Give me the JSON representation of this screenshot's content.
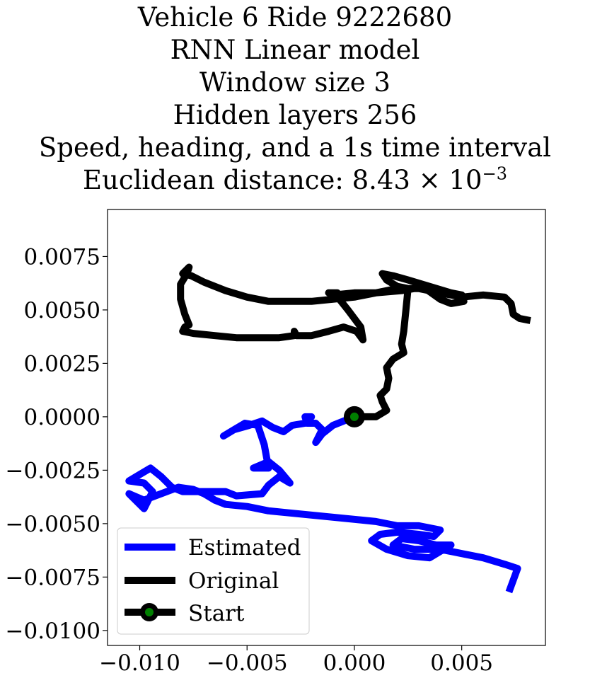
{
  "title": {
    "line1": "Vehicle 6 Ride 9222680",
    "line2": "RNN Linear model",
    "line3": "Window size 3",
    "line4": "Hidden layers 256",
    "line5": "Speed, heading, and a 1s time interval",
    "line6_prefix": "Euclidean distance: 8.43 × 10",
    "line6_exponent": "−3"
  },
  "chart_data": {
    "type": "line",
    "xlim": [
      -0.0115,
      0.0089
    ],
    "ylim": [
      -0.0107,
      0.0097
    ],
    "xticks": [
      -0.01,
      -0.005,
      0.0,
      0.005
    ],
    "xtick_labels": [
      "−0.010",
      "−0.005",
      "0.000",
      "0.005"
    ],
    "yticks": [
      0.0075,
      0.005,
      0.0025,
      0.0,
      -0.0025,
      -0.005,
      -0.0075,
      -0.01
    ],
    "ytick_labels": [
      "0.0075",
      "0.0050",
      "0.0025",
      "0.0000",
      "−0.0025",
      "−0.0050",
      "−0.0075",
      "−0.0100"
    ],
    "grid": false,
    "legend_position": "lower-left",
    "series": [
      {
        "name": "Estimated",
        "color": "#0000ff",
        "points": [
          [
            0.0,
            0.0
          ],
          [
            -0.001,
            -0.0004
          ],
          [
            -0.0015,
            -0.0008
          ],
          [
            -0.0018,
            -0.0012
          ],
          [
            -0.0015,
            -0.0006
          ],
          [
            -0.0018,
            -0.0003
          ],
          [
            -0.0022,
            -0.0003
          ],
          [
            -0.0023,
            0.0
          ],
          [
            -0.002,
            0.0
          ],
          [
            -0.0023,
            -0.0003
          ],
          [
            -0.0029,
            -0.0004
          ],
          [
            -0.0033,
            -0.0007
          ],
          [
            -0.0038,
            -0.0005
          ],
          [
            -0.0043,
            -0.0002
          ],
          [
            -0.0049,
            -0.0004
          ],
          [
            -0.0056,
            -0.0006
          ],
          [
            -0.0061,
            -0.0009
          ],
          [
            -0.0056,
            -0.0006
          ],
          [
            -0.0051,
            -0.0003
          ],
          [
            -0.0045,
            -0.0004
          ],
          [
            -0.0042,
            -0.0013
          ],
          [
            -0.004,
            -0.0024
          ],
          [
            -0.0047,
            -0.0024
          ],
          [
            -0.004,
            -0.0021
          ],
          [
            -0.0035,
            -0.0025
          ],
          [
            -0.003,
            -0.0031
          ],
          [
            -0.0035,
            -0.0028
          ],
          [
            -0.004,
            -0.0032
          ],
          [
            -0.0043,
            -0.0036
          ],
          [
            -0.0055,
            -0.0037
          ],
          [
            -0.006,
            -0.0035
          ],
          [
            -0.0068,
            -0.0035
          ],
          [
            -0.008,
            -0.0035
          ],
          [
            -0.0085,
            -0.0033
          ],
          [
            -0.009,
            -0.0028
          ],
          [
            -0.0095,
            -0.0024
          ],
          [
            -0.01,
            -0.0027
          ],
          [
            -0.0105,
            -0.003
          ],
          [
            -0.0098,
            -0.0031
          ],
          [
            -0.0094,
            -0.0035
          ],
          [
            -0.0098,
            -0.0043
          ],
          [
            -0.0105,
            -0.0036
          ],
          [
            -0.0098,
            -0.0039
          ],
          [
            -0.009,
            -0.0036
          ],
          [
            -0.0082,
            -0.0033
          ],
          [
            -0.0075,
            -0.0034
          ],
          [
            -0.007,
            -0.0036
          ],
          [
            -0.0065,
            -0.0039
          ],
          [
            -0.006,
            -0.0041
          ],
          [
            -0.005,
            -0.0042
          ],
          [
            -0.004,
            -0.0044
          ],
          [
            -0.003,
            -0.0045
          ],
          [
            -0.002,
            -0.0046
          ],
          [
            -0.001,
            -0.0047
          ],
          [
            0.0,
            -0.0048
          ],
          [
            0.001,
            -0.0049
          ],
          [
            0.002,
            -0.0051
          ],
          [
            0.003,
            -0.0051
          ],
          [
            0.004,
            -0.0053
          ],
          [
            0.0037,
            -0.0056
          ],
          [
            0.003,
            -0.0055
          ],
          [
            0.002,
            -0.0054
          ],
          [
            0.0012,
            -0.0055
          ],
          [
            0.0008,
            -0.0058
          ],
          [
            0.0015,
            -0.0062
          ],
          [
            0.0025,
            -0.0065
          ],
          [
            0.0035,
            -0.0066
          ],
          [
            0.004,
            -0.0063
          ],
          [
            0.0045,
            -0.006
          ],
          [
            0.0038,
            -0.006
          ],
          [
            0.003,
            -0.0058
          ],
          [
            0.0022,
            -0.0057
          ],
          [
            0.0018,
            -0.006
          ],
          [
            0.0028,
            -0.0062
          ],
          [
            0.004,
            -0.0062
          ],
          [
            0.005,
            -0.0064
          ],
          [
            0.006,
            -0.0066
          ],
          [
            0.007,
            -0.0069
          ],
          [
            0.0076,
            -0.0071
          ],
          [
            0.0072,
            -0.0082
          ]
        ]
      },
      {
        "name": "Original",
        "color": "#000000",
        "points": [
          [
            0.0,
            0.0
          ],
          [
            0.001,
            0.0
          ],
          [
            0.0015,
            0.0003
          ],
          [
            0.0013,
            0.0007
          ],
          [
            0.0012,
            0.001
          ],
          [
            0.0015,
            0.0013
          ],
          [
            0.0016,
            0.0018
          ],
          [
            0.0015,
            0.0023
          ],
          [
            0.0018,
            0.0027
          ],
          [
            0.0023,
            0.003
          ],
          [
            0.0022,
            0.0034
          ],
          [
            0.0023,
            0.004
          ],
          [
            0.0024,
            0.005
          ],
          [
            0.0025,
            0.006
          ],
          [
            0.002,
            0.0061
          ],
          [
            0.0015,
            0.0064
          ],
          [
            0.0013,
            0.0067
          ],
          [
            0.0018,
            0.0066
          ],
          [
            0.0025,
            0.0064
          ],
          [
            0.0035,
            0.0061
          ],
          [
            0.0045,
            0.0058
          ],
          [
            0.005,
            0.0057
          ],
          [
            0.0051,
            0.0054
          ],
          [
            0.0045,
            0.0053
          ],
          [
            0.004,
            0.0055
          ],
          [
            0.0033,
            0.006
          ],
          [
            0.0028,
            0.006
          ],
          [
            0.0022,
            0.0059
          ],
          [
            0.001,
            0.0058
          ],
          [
            0.0,
            0.0058
          ],
          [
            -0.001,
            0.0057
          ],
          [
            -0.0012,
            0.0058
          ],
          [
            -0.0008,
            0.0058
          ],
          [
            -0.0007,
            0.0055
          ],
          [
            -0.0003,
            0.005
          ],
          [
            0.0,
            0.0046
          ],
          [
            0.0003,
            0.0042
          ],
          [
            0.0004,
            0.0036
          ],
          [
            0.0001,
            0.004
          ],
          [
            -0.0005,
            0.0042
          ],
          [
            -0.0012,
            0.004
          ],
          [
            -0.002,
            0.0038
          ],
          [
            -0.0027,
            0.0038
          ],
          [
            -0.0028,
            0.004
          ],
          [
            -0.0028,
            0.0038
          ],
          [
            -0.0035,
            0.0037
          ],
          [
            -0.0045,
            0.0037
          ],
          [
            -0.0055,
            0.0037
          ],
          [
            -0.0065,
            0.0038
          ],
          [
            -0.0075,
            0.0039
          ],
          [
            -0.008,
            0.004
          ],
          [
            -0.0079,
            0.0042
          ],
          [
            -0.0077,
            0.0043
          ],
          [
            -0.0079,
            0.0048
          ],
          [
            -0.0081,
            0.0055
          ],
          [
            -0.0081,
            0.0062
          ],
          [
            -0.0078,
            0.0067
          ],
          [
            -0.0077,
            0.007
          ],
          [
            -0.008,
            0.0067
          ],
          [
            -0.0076,
            0.0066
          ],
          [
            -0.007,
            0.0063
          ],
          [
            -0.006,
            0.0059
          ],
          [
            -0.005,
            0.0056
          ],
          [
            -0.004,
            0.0054
          ],
          [
            -0.003,
            0.0054
          ],
          [
            -0.002,
            0.0054
          ],
          [
            -0.001,
            0.0055
          ],
          [
            0.0,
            0.0056
          ],
          [
            0.001,
            0.0058
          ],
          [
            0.002,
            0.006
          ],
          [
            0.003,
            0.006
          ],
          [
            0.004,
            0.0058
          ],
          [
            0.005,
            0.0056
          ],
          [
            0.006,
            0.0057
          ],
          [
            0.007,
            0.0056
          ],
          [
            0.0073,
            0.0053
          ],
          [
            0.0074,
            0.0048
          ],
          [
            0.0077,
            0.0046
          ],
          [
            0.0082,
            0.0045
          ]
        ]
      }
    ],
    "start_point": [
      0.0,
      0.0
    ],
    "legend": [
      {
        "label": "Estimated",
        "color": "#0000ff"
      },
      {
        "label": "Original",
        "color": "#000000"
      },
      {
        "label": "Start",
        "color": "#000000",
        "marker_color": "#008000"
      }
    ]
  }
}
